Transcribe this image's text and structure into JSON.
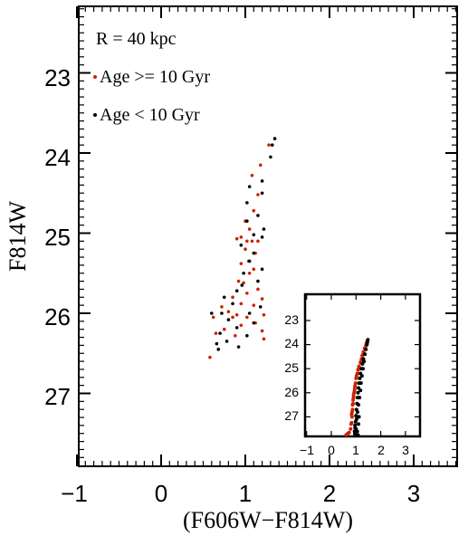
{
  "chart_data": [
    {
      "type": "scatter",
      "title": "",
      "xlabel": "(F606W−F814W)",
      "ylabel": "F814W",
      "xlim": [
        -1,
        3.5
      ],
      "ylim": [
        27.9,
        22.2
      ],
      "y_inverted": true,
      "xticks": [
        -1,
        0,
        1,
        2,
        3
      ],
      "xtick_labels": [
        "−1",
        "0",
        "1",
        "2",
        "3"
      ],
      "yticks": [
        23,
        24,
        25,
        26,
        27
      ],
      "ytick_labels": [
        "23",
        "24",
        "25",
        "26",
        "27"
      ],
      "grid": false,
      "legend_position": "top-left",
      "annotations": [
        "R = 40 kpc"
      ],
      "series": [
        {
          "name": "Age >= 10 Gyr",
          "color": "#cc2200",
          "points": [
            [
              1.28,
              23.9
            ],
            [
              1.18,
              24.15
            ],
            [
              1.08,
              24.28
            ],
            [
              1.15,
              24.52
            ],
            [
              1.1,
              24.72
            ],
            [
              1.0,
              24.85
            ],
            [
              1.05,
              24.95
            ],
            [
              0.95,
              25.05
            ],
            [
              0.9,
              25.07
            ],
            [
              1.02,
              25.1
            ],
            [
              1.08,
              25.1
            ],
            [
              1.15,
              25.1
            ],
            [
              1.0,
              25.2
            ],
            [
              1.12,
              25.25
            ],
            [
              1.04,
              25.35
            ],
            [
              0.95,
              25.38
            ],
            [
              1.1,
              25.45
            ],
            [
              1.05,
              25.5
            ],
            [
              0.92,
              25.6
            ],
            [
              0.98,
              25.62
            ],
            [
              1.15,
              25.7
            ],
            [
              1.02,
              25.75
            ],
            [
              0.85,
              25.8
            ],
            [
              1.2,
              25.82
            ],
            [
              0.95,
              25.88
            ],
            [
              1.1,
              25.9
            ],
            [
              0.72,
              25.92
            ],
            [
              0.8,
              25.98
            ],
            [
              0.9,
              26.02
            ],
            [
              1.22,
              26.02
            ],
            [
              0.62,
              26.05
            ],
            [
              0.85,
              26.05
            ],
            [
              1.02,
              26.05
            ],
            [
              1.12,
              26.12
            ],
            [
              0.95,
              26.15
            ],
            [
              0.75,
              26.2
            ],
            [
              0.65,
              26.25
            ],
            [
              1.2,
              26.22
            ],
            [
              0.88,
              26.28
            ],
            [
              1.22,
              26.32
            ],
            [
              0.58,
              26.55
            ]
          ]
        },
        {
          "name": "Age < 10 Gyr",
          "color": "#000000",
          "points": [
            [
              1.35,
              23.82
            ],
            [
              1.32,
              23.9
            ],
            [
              1.3,
              24.05
            ],
            [
              1.2,
              24.35
            ],
            [
              1.05,
              24.42
            ],
            [
              1.2,
              24.5
            ],
            [
              1.02,
              24.62
            ],
            [
              1.15,
              24.78
            ],
            [
              1.02,
              24.85
            ],
            [
              1.22,
              24.95
            ],
            [
              1.1,
              25.02
            ],
            [
              1.2,
              25.05
            ],
            [
              0.95,
              25.15
            ],
            [
              1.1,
              25.25
            ],
            [
              1.05,
              25.35
            ],
            [
              1.2,
              25.45
            ],
            [
              0.98,
              25.5
            ],
            [
              1.15,
              25.6
            ],
            [
              0.96,
              25.65
            ],
            [
              0.9,
              25.72
            ],
            [
              0.75,
              25.8
            ],
            [
              0.85,
              25.88
            ],
            [
              1.18,
              25.92
            ],
            [
              0.72,
              26.0
            ],
            [
              1.05,
              26.0
            ],
            [
              0.6,
              26.0
            ],
            [
              0.8,
              26.08
            ],
            [
              1.1,
              26.12
            ],
            [
              0.9,
              26.18
            ],
            [
              0.7,
              26.25
            ],
            [
              1.02,
              26.28
            ],
            [
              0.78,
              26.35
            ],
            [
              0.66,
              26.38
            ],
            [
              0.92,
              26.42
            ],
            [
              0.68,
              26.45
            ]
          ]
        }
      ]
    },
    {
      "type": "scatter",
      "title": "",
      "xlabel": "",
      "ylabel": "",
      "xlim": [
        -1,
        3.8
      ],
      "ylim": [
        28.2,
        22.4
      ],
      "y_inverted": true,
      "xticks": [
        -1,
        0,
        1,
        2,
        3
      ],
      "xtick_labels": [
        "−1",
        "0",
        "1",
        "2",
        "3"
      ],
      "yticks": [
        23,
        24,
        25,
        26,
        27
      ],
      "ytick_labels": [
        "23",
        "24",
        "25",
        "26",
        "27"
      ],
      "grid": false,
      "legend_position": "none",
      "series": [
        {
          "color": "#cc2200",
          "points": [
            [
              1.45,
              23.85
            ],
            [
              1.42,
              23.95
            ],
            [
              1.4,
              24.05
            ],
            [
              1.35,
              24.15
            ],
            [
              1.3,
              24.3
            ],
            [
              1.25,
              24.45
            ],
            [
              1.22,
              24.6
            ],
            [
              1.18,
              24.75
            ],
            [
              1.12,
              24.9
            ],
            [
              1.08,
              25.05
            ],
            [
              1.05,
              25.2
            ],
            [
              1.0,
              25.4
            ],
            [
              0.98,
              25.6
            ],
            [
              0.95,
              25.8
            ],
            [
              0.92,
              26.0
            ],
            [
              0.9,
              26.2
            ],
            [
              0.88,
              26.45
            ],
            [
              0.86,
              26.7
            ],
            [
              0.84,
              27.0
            ],
            [
              0.82,
              27.25
            ],
            [
              0.78,
              27.5
            ],
            [
              0.72,
              27.65
            ],
            [
              0.6,
              27.75
            ],
            [
              0.5,
              27.85
            ],
            [
              1.02,
              25.3
            ],
            [
              1.1,
              25.0
            ],
            [
              0.96,
              25.7
            ],
            [
              0.9,
              26.1
            ],
            [
              0.86,
              26.5
            ],
            [
              0.82,
              26.9
            ],
            [
              0.8,
              27.3
            ],
            [
              0.66,
              27.7
            ],
            [
              0.55,
              27.8
            ],
            [
              1.3,
              24.35
            ],
            [
              1.2,
              24.7
            ],
            [
              0.94,
              25.9
            ],
            [
              0.88,
              26.3
            ],
            [
              0.84,
              26.8
            ]
          ]
        },
        {
          "color": "#000000",
          "points": [
            [
              1.48,
              23.8
            ],
            [
              1.46,
              23.9
            ],
            [
              1.44,
              24.0
            ],
            [
              1.4,
              24.2
            ],
            [
              1.36,
              24.4
            ],
            [
              1.3,
              24.6
            ],
            [
              1.26,
              24.8
            ],
            [
              1.22,
              25.0
            ],
            [
              1.18,
              25.2
            ],
            [
              1.15,
              25.4
            ],
            [
              1.12,
              25.6
            ],
            [
              1.1,
              25.8
            ],
            [
              1.08,
              26.0
            ],
            [
              1.06,
              26.2
            ],
            [
              1.04,
              26.45
            ],
            [
              1.02,
              26.7
            ],
            [
              1.0,
              26.95
            ],
            [
              0.98,
              27.2
            ],
            [
              0.96,
              27.45
            ],
            [
              0.95,
              27.7
            ],
            [
              0.94,
              27.9
            ],
            [
              0.92,
              28.05
            ],
            [
              1.0,
              27.8
            ],
            [
              0.9,
              27.95
            ],
            [
              1.05,
              27.6
            ],
            [
              1.1,
              27.3
            ],
            [
              1.12,
              27.0
            ],
            [
              1.0,
              27.5
            ],
            [
              0.96,
              27.35
            ],
            [
              1.02,
              27.1
            ],
            [
              1.06,
              26.8
            ],
            [
              1.1,
              26.5
            ],
            [
              1.14,
              26.2
            ],
            [
              1.18,
              25.9
            ],
            [
              1.2,
              25.6
            ],
            [
              1.24,
              25.3
            ],
            [
              1.28,
              25.0
            ],
            [
              1.32,
              24.7
            ],
            [
              0.98,
              28.0
            ],
            [
              0.94,
              27.6
            ],
            [
              0.9,
              27.8
            ],
            [
              0.86,
              27.95
            ],
            [
              1.08,
              27.75
            ]
          ]
        }
      ]
    }
  ],
  "colors": {
    "old": "#cc2200",
    "young": "#000000",
    "frame": "#000000"
  }
}
